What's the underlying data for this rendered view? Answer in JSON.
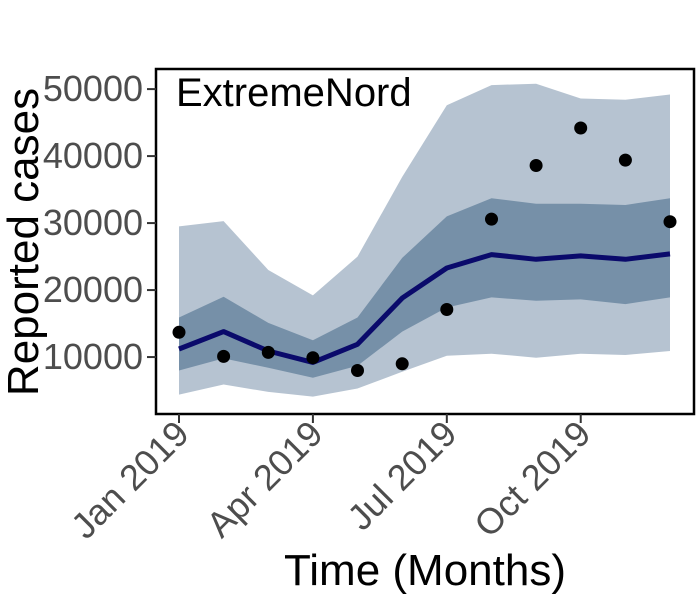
{
  "chart_data": {
    "type": "line",
    "panel_label": "ExtremeNord",
    "xlabel": "Time (Months)",
    "ylabel": "Reported cases",
    "x": [
      "2019-01",
      "2019-02",
      "2019-03",
      "2019-04",
      "2019-05",
      "2019-06",
      "2019-07",
      "2019-08",
      "2019-09",
      "2019-10",
      "2019-11",
      "2019-12"
    ],
    "x_tick_labels": [
      "Jan 2019",
      "Apr 2019",
      "Jul 2019",
      "Oct 2019"
    ],
    "x_tick_positions": [
      "2019-01",
      "2019-04",
      "2019-07",
      "2019-10"
    ],
    "y_ticks": [
      10000,
      20000,
      30000,
      40000,
      50000
    ],
    "ylim": [
      1500,
      53000
    ],
    "grid": false,
    "series": [
      {
        "kind": "line",
        "values": [
          11200,
          13800,
          10900,
          9200,
          11900,
          18800,
          23300,
          25300,
          24600,
          25100,
          24600,
          25400
        ]
      },
      {
        "kind": "points",
        "values": [
          13700,
          10100,
          10700,
          9900,
          8000,
          9000,
          17100,
          30600,
          38600,
          44200,
          39400,
          30200
        ]
      },
      {
        "kind": "band-inner",
        "lower": [
          8000,
          9800,
          8400,
          6900,
          8700,
          13800,
          17400,
          18900,
          18400,
          18600,
          17900,
          18900
        ],
        "upper": [
          15900,
          19000,
          15100,
          12500,
          15900,
          24800,
          31000,
          33700,
          32900,
          32900,
          32700,
          33700
        ]
      },
      {
        "kind": "band-outer",
        "lower": [
          4400,
          5900,
          4800,
          4100,
          5300,
          7800,
          10200,
          10500,
          9900,
          10500,
          10300,
          10900
        ],
        "upper": [
          29500,
          30300,
          23000,
          19200,
          25000,
          36900,
          47600,
          50600,
          50800,
          48600,
          48400,
          49200
        ]
      }
    ],
    "colors": {
      "line": "#0a0a6b",
      "points": "#000000",
      "band_inner": "#7690a8",
      "band_outer": "#b6c3d1",
      "frame": "#000000"
    }
  }
}
